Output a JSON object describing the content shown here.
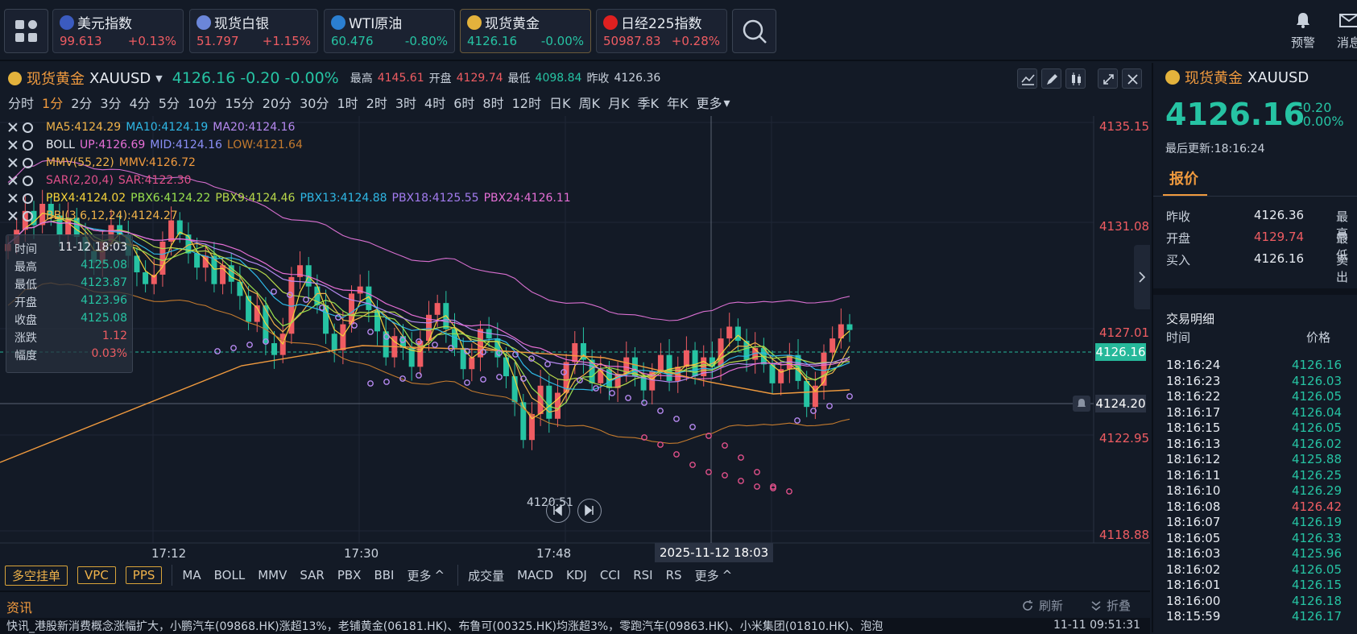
{
  "topbar": {
    "quotes": [
      {
        "name": "美元指数",
        "price": "99.613",
        "change": "+0.13%",
        "dir": "up",
        "flag_color": "#3b5bbf"
      },
      {
        "name": "现货白银",
        "price": "51.797",
        "change": "+1.15%",
        "dir": "up",
        "flag_color": "#6b86d9"
      },
      {
        "name": "WTI原油",
        "price": "60.476",
        "change": "-0.80%",
        "dir": "dn",
        "flag_color": "#2b7fd1"
      },
      {
        "name": "现货黄金",
        "price": "4126.16",
        "change": "-0.00%",
        "dir": "dn",
        "flag_color": "#e3b23c"
      },
      {
        "name": "日经225指数",
        "price": "50987.83",
        "change": "+0.28%",
        "dir": "up",
        "flag_color": "#e02020"
      }
    ],
    "alert_label": "预警",
    "message_label": "消息"
  },
  "chart_header": {
    "name": "现货黄金",
    "symbol": "XAUUSD",
    "price": "4126.16",
    "change": "-0.20",
    "change_pct": "-0.00%",
    "high_label": "最高",
    "high": "4145.61",
    "open_label": "开盘",
    "open": "4129.74",
    "low_label": "最低",
    "low": "4098.84",
    "prev_label": "昨收",
    "prev": "4126.36"
  },
  "timeframes": [
    "分时",
    "1分",
    "2分",
    "3分",
    "4分",
    "5分",
    "10分",
    "15分",
    "20分",
    "30分",
    "1时",
    "2时",
    "3时",
    "4时",
    "6时",
    "8时",
    "12时",
    "日K",
    "周K",
    "月K",
    "季K",
    "年K",
    "更多"
  ],
  "selected_timeframe": "1分",
  "indicators": {
    "ma": {
      "ma5": "MA5:4124.29",
      "ma10": "MA10:4124.19",
      "ma20": "MA20:4124.16"
    },
    "boll": {
      "name": "BOLL",
      "up": "UP:4126.69",
      "mid": "MID:4124.16",
      "low": "LOW:4121.64"
    },
    "mmv": {
      "name": "MMV(55,22)",
      "val": "MMV:4126.72"
    },
    "sar": {
      "name": "SAR(2,20,4)",
      "val": "SAR:4122.30"
    },
    "pbx": [
      "PBX4:4124.02",
      "PBX6:4124.22",
      "PBX9:4124.46",
      "PBX13:4124.88",
      "PBX18:4125.55",
      "PBX24:4126.11"
    ],
    "bbi": "BBI(3,6,12,24):4124.27"
  },
  "y_axis": [
    "4135.15",
    "4131.08",
    "4127.01",
    "4122.95",
    "4118.88"
  ],
  "current_price_tag": "4126.16",
  "crosshair_price_tag": "4124.20",
  "min_price_label": "4120.51",
  "x_axis": [
    "17:12",
    "17:30",
    "17:48"
  ],
  "crosshair_time": "2025-11-12 18:03",
  "tooltip": {
    "rows": [
      {
        "label": "时间",
        "value": "11-12 18:03"
      },
      {
        "label": "最高",
        "value": "4125.08"
      },
      {
        "label": "最低",
        "value": "4123.87"
      },
      {
        "label": "开盘",
        "value": "4123.96"
      },
      {
        "label": "收盘",
        "value": "4125.08"
      },
      {
        "label": "涨跌",
        "value": "1.12"
      },
      {
        "label": "幅度",
        "value": "0.03%"
      }
    ]
  },
  "toolbar": {
    "boxes": [
      "多空挂单",
      "VPC",
      "PPS"
    ],
    "main_inds": [
      "MA",
      "BOLL",
      "MMV",
      "SAR",
      "PBX",
      "BBI",
      "更多"
    ],
    "sub_inds": [
      "成交量",
      "MACD",
      "KDJ",
      "CCI",
      "RSI",
      "RS",
      "更多"
    ]
  },
  "news": {
    "title": "资讯",
    "refresh": "刷新",
    "collapse": "折叠",
    "ticker": "快讯_港股新消费概念涨幅扩大，小鹏汽车(09868.HK)涨超13%，老铺黄金(06181.HK)、布鲁可(00325.HK)均涨超3%，零跑汽车(09863.HK)、小米集团(01810.HK)、泡泡",
    "time": "11-11 09:51:31"
  },
  "side": {
    "name": "现货黄金",
    "symbol": "XAUUSD",
    "price": "4126.16",
    "change": "-0.20",
    "change_pct": "-0.00%",
    "updated": "最后更新:18:16:24",
    "tab": "报价",
    "quote": [
      {
        "label": "昨收",
        "value": "4126.36",
        "extra": "最高"
      },
      {
        "label": "开盘",
        "value": "4129.74",
        "extra": "最低"
      },
      {
        "label": "买入",
        "value": "4126.16",
        "extra": "卖出"
      }
    ],
    "trades_title": "交易明细",
    "col_time": "时间",
    "col_price": "价格",
    "trades": [
      {
        "t": "18:16:24",
        "p": "4126.16",
        "dir": "dn"
      },
      {
        "t": "18:16:23",
        "p": "4126.03",
        "dir": "dn"
      },
      {
        "t": "18:16:22",
        "p": "4126.05",
        "dir": "dn"
      },
      {
        "t": "18:16:17",
        "p": "4126.04",
        "dir": "dn"
      },
      {
        "t": "18:16:15",
        "p": "4126.05",
        "dir": "dn"
      },
      {
        "t": "18:16:13",
        "p": "4126.02",
        "dir": "dn"
      },
      {
        "t": "18:16:12",
        "p": "4125.88",
        "dir": "dn"
      },
      {
        "t": "18:16:11",
        "p": "4126.25",
        "dir": "dn"
      },
      {
        "t": "18:16:10",
        "p": "4126.29",
        "dir": "dn"
      },
      {
        "t": "18:16:08",
        "p": "4126.42",
        "dir": "up"
      },
      {
        "t": "18:16:07",
        "p": "4126.19",
        "dir": "dn"
      },
      {
        "t": "18:16:05",
        "p": "4126.33",
        "dir": "dn"
      },
      {
        "t": "18:16:03",
        "p": "4125.96",
        "dir": "dn"
      },
      {
        "t": "18:16:02",
        "p": "4126.05",
        "dir": "dn"
      },
      {
        "t": "18:16:01",
        "p": "4126.15",
        "dir": "dn"
      },
      {
        "t": "18:16:00",
        "p": "4126.18",
        "dir": "dn"
      },
      {
        "t": "18:15:59",
        "p": "4126.17",
        "dir": "dn"
      }
    ]
  }
}
